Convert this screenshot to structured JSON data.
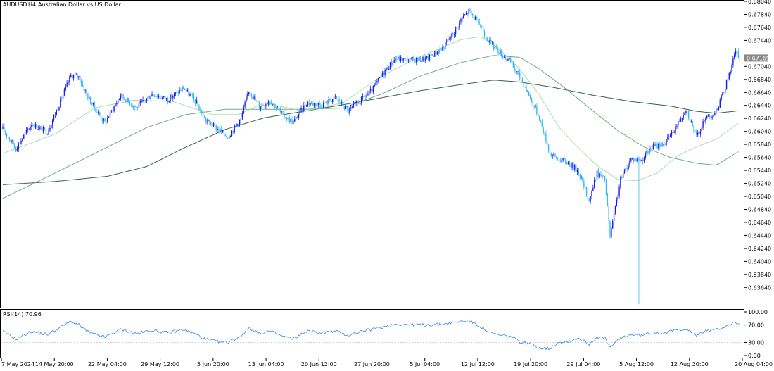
{
  "header": {
    "symbol": "AUDUSD.,",
    "timeframe": "H4:",
    "description": "Australian Dollar vs US Dollar"
  },
  "colors": {
    "candle_up": "#1a1aee",
    "candle_down": "#33bbee",
    "ma_fast": "#a8ddb8",
    "ma_mid": "#6cae84",
    "ma_slow": "#36604a",
    "rsi_line": "#3388ee",
    "price_line": "#8a8a8a",
    "price_tag_bg": "#8a8a8a"
  },
  "chart_data": [
    {
      "type": "candlestick",
      "title": "",
      "ylim": [
        0.6334,
        0.6804
      ],
      "price_ticks": [
        "0.68040",
        "0.67840",
        "0.67640",
        "0.67440",
        "0.67240",
        "0.67040",
        "0.66840",
        "0.66640",
        "0.66440",
        "0.66240",
        "0.66040",
        "0.65840",
        "0.65640",
        "0.65440",
        "0.65240",
        "0.65040",
        "0.64840",
        "0.64640",
        "0.64440",
        "0.64240",
        "0.64040",
        "0.63840",
        "0.63640"
      ],
      "current_price": "0.67169",
      "time_labels": [
        "7 May 2024",
        "14 May 20:00",
        "22 May 04:00",
        "29 May 12:00",
        "5 Jun 20:00",
        "13 Jun 04:00",
        "20 Jun 12:00",
        "27 Jun 20:00",
        "5 Jul 04:00",
        "12 Jul 12:00",
        "19 Jul 20:00",
        "29 Jul 04:00",
        "5 Aug 12:00",
        "12 Aug 20:00",
        "20 Aug 04:00"
      ],
      "close_anchors": [
        [
          0,
          0.6608
        ],
        [
          10,
          0.6578
        ],
        [
          22,
          0.6616
        ],
        [
          34,
          0.6603
        ],
        [
          46,
          0.666
        ],
        [
          52,
          0.669
        ],
        [
          58,
          0.6688
        ],
        [
          66,
          0.6653
        ],
        [
          78,
          0.6617
        ],
        [
          90,
          0.666
        ],
        [
          102,
          0.664
        ],
        [
          114,
          0.6662
        ],
        [
          126,
          0.6653
        ],
        [
          138,
          0.6671
        ],
        [
          148,
          0.6648
        ],
        [
          154,
          0.6623
        ],
        [
          164,
          0.6608
        ],
        [
          172,
          0.6596
        ],
        [
          182,
          0.6624
        ],
        [
          188,
          0.6668
        ],
        [
          196,
          0.6642
        ],
        [
          204,
          0.6652
        ],
        [
          214,
          0.6629
        ],
        [
          222,
          0.6618
        ],
        [
          232,
          0.6648
        ],
        [
          244,
          0.6645
        ],
        [
          254,
          0.6656
        ],
        [
          264,
          0.6635
        ],
        [
          272,
          0.6649
        ],
        [
          282,
          0.6667
        ],
        [
          292,
          0.6698
        ],
        [
          300,
          0.6716
        ],
        [
          312,
          0.6714
        ],
        [
          324,
          0.6716
        ],
        [
          336,
          0.6732
        ],
        [
          346,
          0.676
        ],
        [
          350,
          0.6776
        ],
        [
          356,
          0.6789
        ],
        [
          364,
          0.677
        ],
        [
          372,
          0.6741
        ],
        [
          380,
          0.6725
        ],
        [
          388,
          0.671
        ],
        [
          396,
          0.6685
        ],
        [
          402,
          0.666
        ],
        [
          410,
          0.6625
        ],
        [
          418,
          0.657
        ],
        [
          424,
          0.6562
        ],
        [
          432,
          0.6556
        ],
        [
          440,
          0.6542
        ],
        [
          448,
          0.6498
        ],
        [
          454,
          0.654
        ],
        [
          460,
          0.653
        ],
        [
          464,
          0.6442
        ],
        [
          472,
          0.653
        ],
        [
          480,
          0.6562
        ],
        [
          488,
          0.656
        ],
        [
          496,
          0.658
        ],
        [
          506,
          0.6586
        ],
        [
          514,
          0.661
        ],
        [
          522,
          0.664
        ],
        [
          530,
          0.6595
        ],
        [
          538,
          0.6628
        ],
        [
          544,
          0.663
        ],
        [
          550,
          0.666
        ],
        [
          556,
          0.67
        ],
        [
          560,
          0.6727
        ],
        [
          563,
          0.6717
        ]
      ],
      "ma_fast_anchors": [
        [
          0,
          0.657
        ],
        [
          40,
          0.66
        ],
        [
          70,
          0.664
        ],
        [
          100,
          0.6652
        ],
        [
          130,
          0.665
        ],
        [
          160,
          0.663
        ],
        [
          180,
          0.663
        ],
        [
          200,
          0.6648
        ],
        [
          230,
          0.6635
        ],
        [
          260,
          0.6648
        ],
        [
          290,
          0.669
        ],
        [
          320,
          0.672
        ],
        [
          350,
          0.6745
        ],
        [
          365,
          0.675
        ],
        [
          380,
          0.673
        ],
        [
          395,
          0.67
        ],
        [
          410,
          0.666
        ],
        [
          425,
          0.661
        ],
        [
          440,
          0.6578
        ],
        [
          455,
          0.655
        ],
        [
          470,
          0.653
        ],
        [
          485,
          0.6528
        ],
        [
          500,
          0.654
        ],
        [
          515,
          0.6566
        ],
        [
          530,
          0.658
        ],
        [
          545,
          0.6592
        ],
        [
          563,
          0.6618
        ]
      ],
      "ma_mid_anchors": [
        [
          0,
          0.6501
        ],
        [
          40,
          0.654
        ],
        [
          80,
          0.658
        ],
        [
          110,
          0.661
        ],
        [
          140,
          0.663
        ],
        [
          170,
          0.6638
        ],
        [
          200,
          0.6638
        ],
        [
          230,
          0.6638
        ],
        [
          260,
          0.664
        ],
        [
          290,
          0.6662
        ],
        [
          320,
          0.669
        ],
        [
          350,
          0.671
        ],
        [
          375,
          0.6721
        ],
        [
          395,
          0.6718
        ],
        [
          410,
          0.67
        ],
        [
          430,
          0.667
        ],
        [
          450,
          0.6637
        ],
        [
          470,
          0.6605
        ],
        [
          490,
          0.658
        ],
        [
          510,
          0.6564
        ],
        [
          530,
          0.6555
        ],
        [
          545,
          0.6552
        ],
        [
          563,
          0.6574
        ]
      ],
      "ma_slow_anchors": [
        [
          0,
          0.6522
        ],
        [
          40,
          0.6527
        ],
        [
          80,
          0.6535
        ],
        [
          110,
          0.655
        ],
        [
          140,
          0.658
        ],
        [
          170,
          0.6607
        ],
        [
          200,
          0.6625
        ],
        [
          230,
          0.6635
        ],
        [
          260,
          0.6645
        ],
        [
          290,
          0.6656
        ],
        [
          320,
          0.6667
        ],
        [
          350,
          0.6676
        ],
        [
          375,
          0.6683
        ],
        [
          395,
          0.668
        ],
        [
          420,
          0.6672
        ],
        [
          450,
          0.666
        ],
        [
          480,
          0.665
        ],
        [
          510,
          0.6643
        ],
        [
          530,
          0.6635
        ],
        [
          545,
          0.6632
        ],
        [
          563,
          0.6636
        ]
      ]
    },
    {
      "type": "line",
      "title": "RSI(14) 70.96",
      "ylim": [
        0,
        100
      ],
      "ticks": [
        "100.00",
        "70.00",
        "30.00",
        "0.00"
      ],
      "levels": [
        70,
        30
      ],
      "rsi_anchors": [
        [
          0,
          55
        ],
        [
          10,
          38
        ],
        [
          22,
          55
        ],
        [
          34,
          48
        ],
        [
          46,
          68
        ],
        [
          52,
          78
        ],
        [
          58,
          70
        ],
        [
          66,
          52
        ],
        [
          78,
          42
        ],
        [
          90,
          60
        ],
        [
          102,
          50
        ],
        [
          114,
          58
        ],
        [
          126,
          52
        ],
        [
          138,
          60
        ],
        [
          148,
          48
        ],
        [
          154,
          38
        ],
        [
          164,
          32
        ],
        [
          172,
          30
        ],
        [
          182,
          45
        ],
        [
          188,
          64
        ],
        [
          196,
          50
        ],
        [
          204,
          56
        ],
        [
          214,
          44
        ],
        [
          222,
          38
        ],
        [
          232,
          56
        ],
        [
          244,
          52
        ],
        [
          254,
          56
        ],
        [
          264,
          46
        ],
        [
          272,
          54
        ],
        [
          282,
          60
        ],
        [
          292,
          66
        ],
        [
          300,
          72
        ],
        [
          312,
          70
        ],
        [
          324,
          70
        ],
        [
          336,
          72
        ],
        [
          346,
          76
        ],
        [
          350,
          78
        ],
        [
          356,
          80
        ],
        [
          364,
          68
        ],
        [
          372,
          52
        ],
        [
          380,
          46
        ],
        [
          388,
          44
        ],
        [
          396,
          30
        ],
        [
          402,
          28
        ],
        [
          410,
          18
        ],
        [
          418,
          16
        ],
        [
          424,
          30
        ],
        [
          432,
          32
        ],
        [
          440,
          40
        ],
        [
          448,
          26
        ],
        [
          454,
          42
        ],
        [
          460,
          40
        ],
        [
          464,
          18
        ],
        [
          472,
          40
        ],
        [
          480,
          48
        ],
        [
          488,
          46
        ],
        [
          496,
          52
        ],
        [
          506,
          52
        ],
        [
          514,
          58
        ],
        [
          522,
          62
        ],
        [
          530,
          46
        ],
        [
          538,
          58
        ],
        [
          544,
          58
        ],
        [
          550,
          64
        ],
        [
          556,
          72
        ],
        [
          560,
          76
        ],
        [
          563,
          71
        ]
      ]
    }
  ]
}
